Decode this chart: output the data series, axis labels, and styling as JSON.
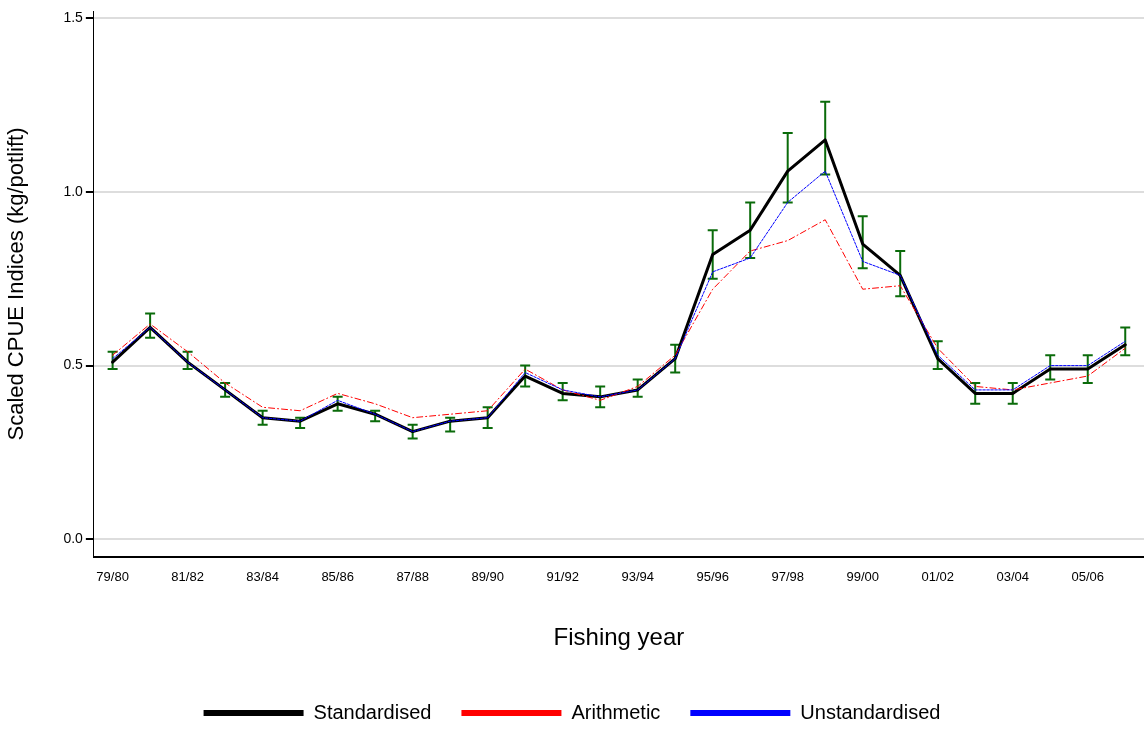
{
  "chart_data": {
    "type": "line",
    "xlabel": "Fishing year",
    "ylabel": "Scaled CPUE Indices (kg/potlift)",
    "categories": [
      "79/80",
      null,
      "81/82",
      null,
      "83/84",
      null,
      "85/86",
      null,
      "87/88",
      null,
      "89/90",
      null,
      "91/92",
      null,
      "93/94",
      null,
      "95/96",
      null,
      "97/98",
      null,
      "99/00",
      null,
      "01/02",
      null,
      "03/04",
      null,
      "05/06",
      null
    ],
    "ylim": [
      -0.05,
      1.52
    ],
    "yticks": [
      {
        "value": 0,
        "label": "0.0"
      },
      {
        "value": 0.5,
        "label": "0.5"
      },
      {
        "value": 1,
        "label": "1.0"
      },
      {
        "value": 1.5,
        "label": "1.5"
      }
    ],
    "grid": "y",
    "legend": "bottom",
    "marker": "none",
    "series": [
      {
        "name": "Standardised",
        "color": "#000000",
        "line_style": "solid",
        "values": [
          0.51,
          0.61,
          0.51,
          0.43,
          0.35,
          0.34,
          0.39,
          0.36,
          0.31,
          0.34,
          0.35,
          0.47,
          0.42,
          0.41,
          0.43,
          0.52,
          0.82,
          0.89,
          1.06,
          1.15,
          0.85,
          0.76,
          0.52,
          0.42,
          0.42,
          0.49,
          0.49,
          0.56
        ],
        "errors": [
          [
            0.49,
            0.54
          ],
          [
            0.58,
            0.65
          ],
          [
            0.49,
            0.54
          ],
          [
            0.41,
            0.45
          ],
          [
            0.33,
            0.37
          ],
          [
            0.32,
            0.35
          ],
          [
            0.37,
            0.41
          ],
          [
            0.34,
            0.37
          ],
          [
            0.29,
            0.33
          ],
          [
            0.31,
            0.35
          ],
          [
            0.32,
            0.38
          ],
          [
            0.44,
            0.5
          ],
          [
            0.4,
            0.45
          ],
          [
            0.38,
            0.44
          ],
          [
            0.41,
            0.46
          ],
          [
            0.48,
            0.56
          ],
          [
            0.75,
            0.89
          ],
          [
            0.81,
            0.97
          ],
          [
            0.97,
            1.17
          ],
          [
            1.05,
            1.26
          ],
          [
            0.78,
            0.93
          ],
          [
            0.7,
            0.83
          ],
          [
            0.49,
            0.57
          ],
          [
            0.39,
            0.45
          ],
          [
            0.39,
            0.45
          ],
          [
            0.46,
            0.53
          ],
          [
            0.45,
            0.53
          ],
          [
            0.53,
            0.61
          ]
        ]
      },
      {
        "name": "Arithmetic",
        "color": "#ff0000",
        "line_style": "dashdot",
        "values": [
          0.53,
          0.62,
          0.54,
          0.45,
          0.38,
          0.37,
          0.42,
          0.39,
          0.35,
          0.36,
          0.37,
          0.49,
          0.43,
          0.4,
          0.44,
          0.53,
          0.72,
          0.83,
          0.86,
          0.92,
          0.72,
          0.73,
          0.55,
          0.44,
          0.43,
          0.45,
          0.47,
          0.55
        ]
      },
      {
        "name": "Unstandardised",
        "color": "#0000ff",
        "line_style": "dashed",
        "values": [
          0.52,
          0.61,
          0.51,
          0.43,
          0.35,
          0.34,
          0.4,
          0.36,
          0.31,
          0.34,
          0.35,
          0.48,
          0.43,
          0.41,
          0.43,
          0.52,
          0.77,
          0.81,
          0.97,
          1.06,
          0.8,
          0.76,
          0.53,
          0.43,
          0.43,
          0.5,
          0.5,
          0.57
        ]
      }
    ]
  }
}
